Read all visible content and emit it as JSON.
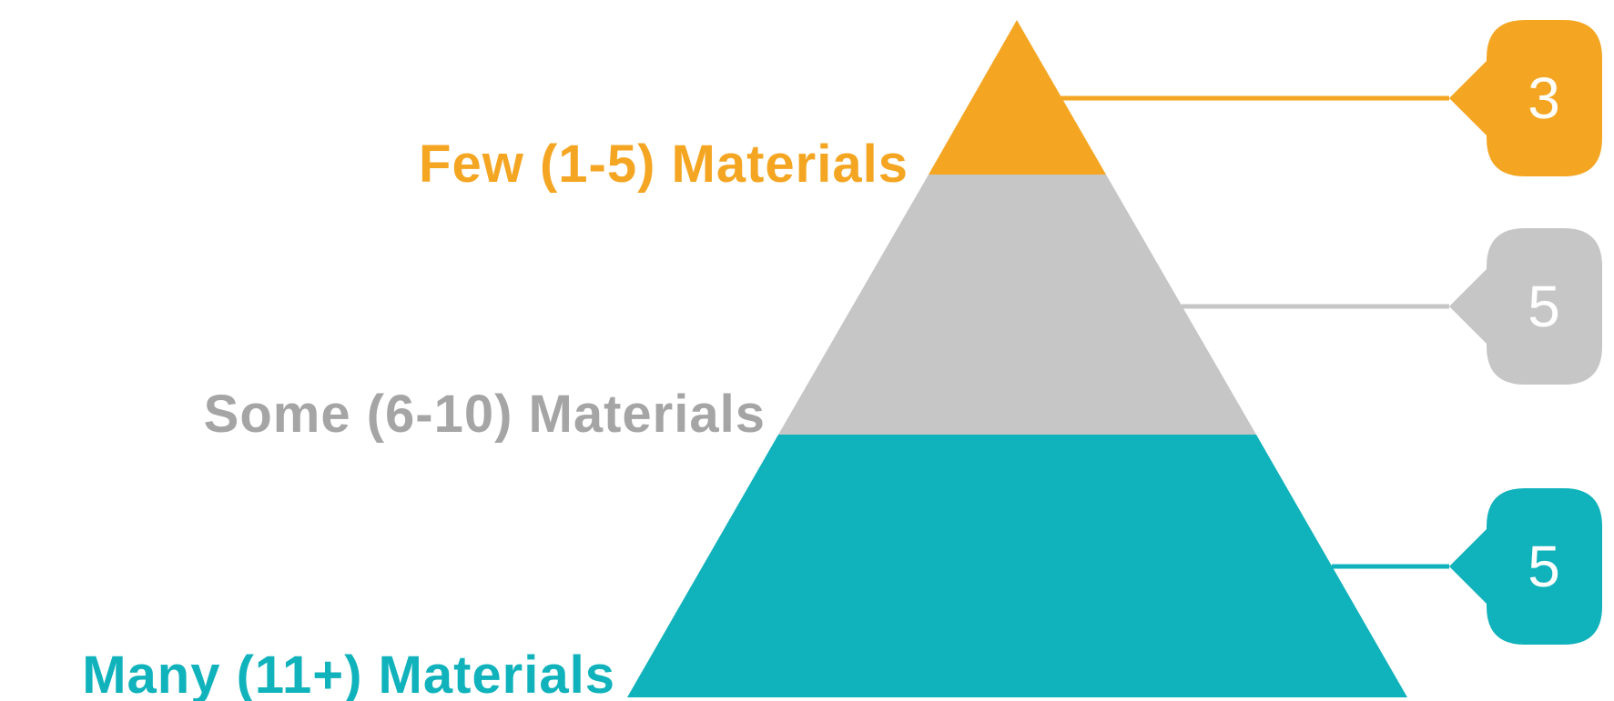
{
  "tiers": [
    {
      "key": "few",
      "label": "Few (1-5) Materials",
      "count": "3",
      "color": "#f4a623"
    },
    {
      "key": "some",
      "label": "Some (6-10) Materials",
      "count": "5",
      "color": "#c6c6c6",
      "label_color": "#a5a5a5"
    },
    {
      "key": "many",
      "label": "Many (11+) Materials",
      "count": "5",
      "color": "#10b2bb"
    }
  ]
}
